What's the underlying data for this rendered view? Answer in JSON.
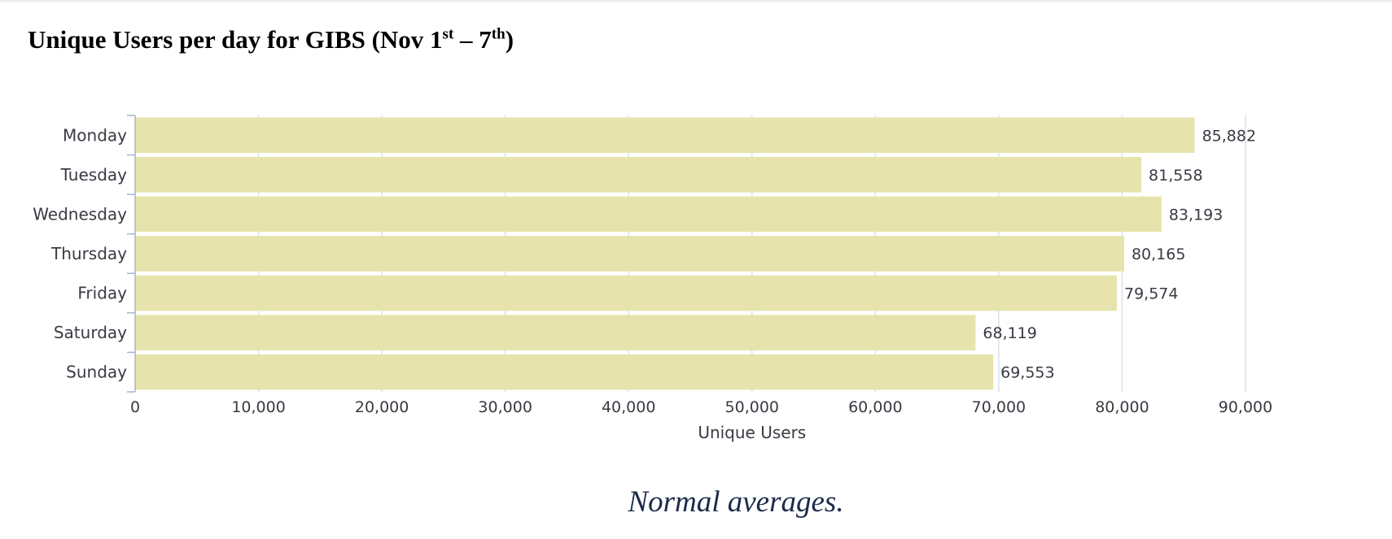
{
  "title": {
    "text": "Unique Users per day for GIBS (Nov 1",
    "sup1": "st",
    "mid": " – 7",
    "sup2": "th",
    "end": ")"
  },
  "caption": "Normal averages.",
  "chart_data": {
    "type": "bar",
    "orientation": "horizontal",
    "categories": [
      "Monday",
      "Tuesday",
      "Wednesday",
      "Thursday",
      "Friday",
      "Saturday",
      "Sunday"
    ],
    "values": [
      85882,
      81558,
      83193,
      80165,
      79574,
      68119,
      69553
    ],
    "value_labels": [
      "85,882",
      "81,558",
      "83,193",
      "80,165",
      "79,574",
      "68,119",
      "69,553"
    ],
    "xlabel": "Unique Users",
    "ylabel": "",
    "xlim": [
      0,
      90000
    ],
    "x_ticks": [
      0,
      10000,
      20000,
      30000,
      40000,
      50000,
      60000,
      70000,
      80000,
      90000
    ],
    "x_tick_labels": [
      "0",
      "10,000",
      "20,000",
      "30,000",
      "40,000",
      "50,000",
      "60,000",
      "70,000",
      "80,000",
      "90,000"
    ],
    "grid": true,
    "legend": "none",
    "bar_color": "#e6e3ac",
    "grid_color": "#dde1e8",
    "axis_color": "#a8b4c8",
    "text_color": "#3a3a44"
  }
}
